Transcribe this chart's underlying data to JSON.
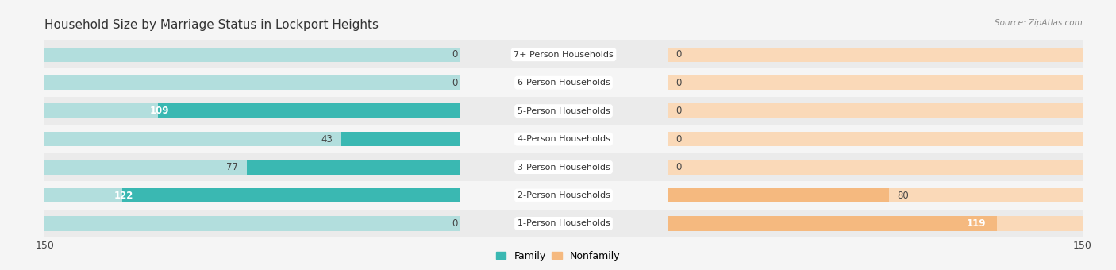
{
  "title": "Household Size by Marriage Status in Lockport Heights",
  "source": "Source: ZipAtlas.com",
  "categories": [
    "7+ Person Households",
    "6-Person Households",
    "5-Person Households",
    "4-Person Households",
    "3-Person Households",
    "2-Person Households",
    "1-Person Households"
  ],
  "family_values": [
    0,
    0,
    109,
    43,
    77,
    122,
    0
  ],
  "nonfamily_values": [
    0,
    0,
    0,
    0,
    0,
    80,
    119
  ],
  "family_color": "#3ab8b2",
  "family_bg_color": "#b2dedd",
  "nonfamily_color": "#f5b97f",
  "nonfamily_bg_color": "#fad9b8",
  "row_bg_even": "#ebebeb",
  "row_bg_odd": "#f5f5f5",
  "fig_bg": "#f5f5f5",
  "xlim": 150,
  "title_fontsize": 11,
  "bar_height": 0.52,
  "value_fontsize": 8.5
}
